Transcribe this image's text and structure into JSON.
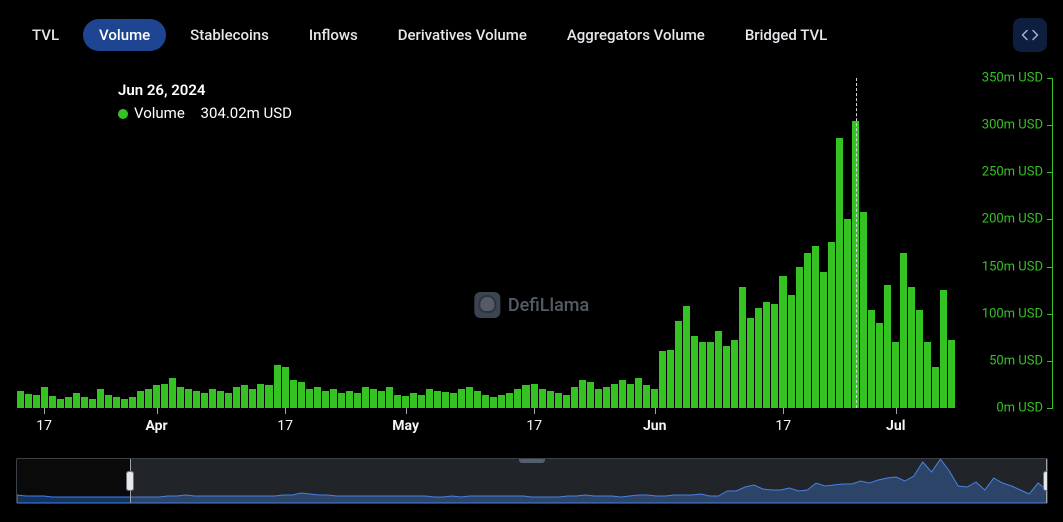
{
  "tabs": {
    "items": [
      {
        "label": "TVL",
        "active": false
      },
      {
        "label": "Volume",
        "active": true
      },
      {
        "label": "Stablecoins",
        "active": false
      },
      {
        "label": "Inflows",
        "active": false
      },
      {
        "label": "Derivatives Volume",
        "active": false
      },
      {
        "label": "Aggregators Volume",
        "active": false
      },
      {
        "label": "Bridged TVL",
        "active": false
      }
    ]
  },
  "tooltip": {
    "date": "Jun 26, 2024",
    "series_label": "Volume",
    "value": "304.02m USD",
    "dot_color": "#35c223"
  },
  "watermark": {
    "text": "DefiLlama"
  },
  "chart": {
    "type": "bar",
    "bar_color": "#35c223",
    "background_color": "#000000",
    "axis_color_y": "#35c223",
    "axis_color_x": "#9ca3af",
    "xlabel_color": "#f3f4f6",
    "ylabel_color": "#35c223",
    "label_fontsize": 13,
    "ylim": [
      0,
      350
    ],
    "y_unit": "m USD",
    "y_ticks": [
      0,
      50,
      100,
      150,
      200,
      250,
      300,
      350
    ],
    "x_ticks": [
      {
        "index": 3,
        "label": "17",
        "bold": false
      },
      {
        "index": 17,
        "label": "Apr",
        "bold": true
      },
      {
        "index": 33,
        "label": "17",
        "bold": false
      },
      {
        "index": 48,
        "label": "May",
        "bold": true
      },
      {
        "index": 64,
        "label": "17",
        "bold": false
      },
      {
        "index": 79,
        "label": "Jun",
        "bold": true
      },
      {
        "index": 95,
        "label": "17",
        "bold": false
      },
      {
        "index": 109,
        "label": "Jul",
        "bold": true
      }
    ],
    "highlight_index": 104,
    "values": [
      18,
      15,
      14,
      22,
      13,
      10,
      12,
      16,
      12,
      10,
      20,
      14,
      12,
      10,
      12,
      18,
      20,
      24,
      26,
      32,
      22,
      20,
      18,
      16,
      20,
      18,
      16,
      22,
      24,
      20,
      26,
      24,
      46,
      44,
      30,
      28,
      20,
      22,
      18,
      20,
      16,
      18,
      16,
      22,
      20,
      18,
      22,
      14,
      13,
      16,
      14,
      20,
      18,
      17,
      16,
      20,
      22,
      18,
      14,
      12,
      14,
      16,
      20,
      24,
      26,
      20,
      18,
      16,
      14,
      22,
      30,
      28,
      20,
      22,
      26,
      30,
      26,
      32,
      24,
      20,
      60,
      62,
      92,
      108,
      76,
      70,
      70,
      82,
      66,
      72,
      128,
      96,
      106,
      112,
      110,
      140,
      120,
      150,
      164,
      172,
      144,
      176,
      286,
      200,
      304,
      208,
      104,
      90,
      130,
      70,
      164,
      128,
      104,
      70,
      44,
      125,
      72
    ]
  },
  "brush": {
    "selection_start_pct": 11,
    "selection_end_pct": 100,
    "fill_color": "#16325b",
    "stroke_color": "#3b82f6",
    "points": [
      8,
      7,
      7,
      7,
      6,
      6,
      6,
      6,
      6,
      6,
      6,
      6,
      6,
      6,
      6,
      6,
      6,
      7,
      7,
      8,
      7,
      7,
      7,
      7,
      7,
      7,
      7,
      7,
      7,
      7,
      8,
      8,
      10,
      9,
      8,
      8,
      7,
      7,
      7,
      7,
      7,
      7,
      7,
      7,
      7,
      7,
      7,
      6,
      6,
      7,
      6,
      7,
      7,
      7,
      7,
      7,
      7,
      7,
      6,
      6,
      6,
      6,
      7,
      7,
      8,
      7,
      7,
      7,
      6,
      7,
      8,
      8,
      7,
      7,
      8,
      8,
      8,
      9,
      7,
      7,
      12,
      12,
      16,
      18,
      14,
      13,
      13,
      15,
      12,
      13,
      20,
      17,
      18,
      19,
      19,
      22,
      20,
      23,
      25,
      26,
      22,
      27,
      41,
      31,
      44,
      32,
      17,
      16,
      21,
      13,
      25,
      20,
      17,
      13,
      9,
      20,
      13
    ]
  }
}
